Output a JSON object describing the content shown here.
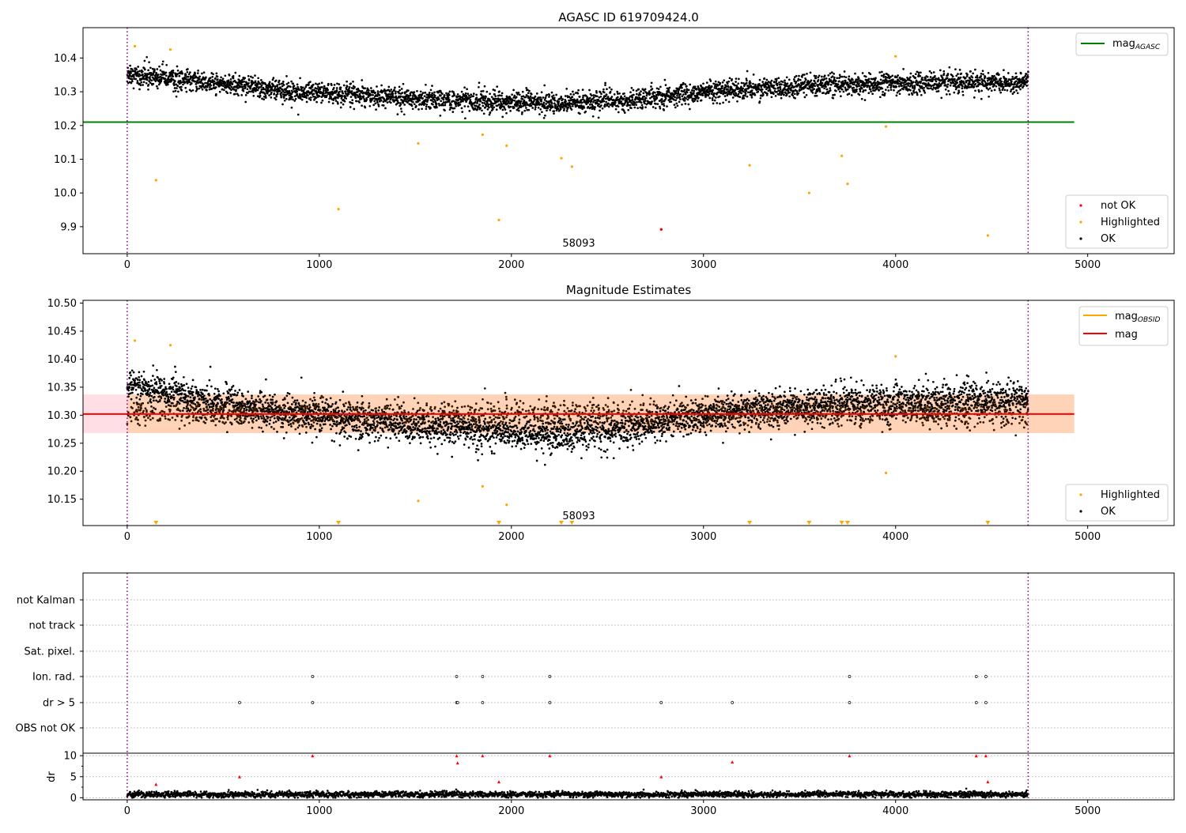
{
  "chart_data": [
    {
      "type": "scatter",
      "title": "AGASC ID 619709424.0",
      "xlim": [
        -230,
        5450
      ],
      "ylim": [
        9.82,
        10.49
      ],
      "xticks": [
        0,
        1000,
        2000,
        3000,
        4000,
        5000
      ],
      "yticks": [
        9.9,
        10.0,
        10.1,
        10.2,
        10.3,
        10.4
      ],
      "ytick_labels": [
        "9.9",
        "10.0",
        "10.1",
        "10.2",
        "10.3",
        "10.4"
      ],
      "legend_upper": {
        "placement": "top-right",
        "entries": [
          {
            "label": "mag",
            "sub": "AGASC",
            "color": "#008000"
          }
        ]
      },
      "legend_lower": {
        "placement": "bottom-right",
        "entries": [
          {
            "label": "not OK",
            "color": "#ff0000"
          },
          {
            "label": "Highlighted",
            "color": "#ffa500"
          },
          {
            "label": "OK",
            "color": "#000000"
          }
        ]
      },
      "hline": {
        "name": "mag_AGASC",
        "y": 10.21,
        "x": [
          -230,
          4930
        ],
        "color": "#008000"
      },
      "vlines": [
        0,
        4690
      ],
      "annotation": {
        "text": "58093",
        "x": 2250,
        "y": 9.84
      },
      "ok_trend": [
        [
          0,
          10.355
        ],
        [
          300,
          10.335
        ],
        [
          800,
          10.305
        ],
        [
          1500,
          10.28
        ],
        [
          2200,
          10.265
        ],
        [
          2600,
          10.275
        ],
        [
          3000,
          10.3
        ],
        [
          3600,
          10.32
        ],
        [
          4690,
          10.33
        ]
      ],
      "ok_n": 4200,
      "ok_spread": 0.02,
      "highlighted": [
        [
          40,
          10.435
        ],
        [
          150,
          10.038
        ],
        [
          225,
          10.425
        ],
        [
          1100,
          9.952
        ],
        [
          1515,
          10.147
        ],
        [
          1850,
          10.173
        ],
        [
          1935,
          9.92
        ],
        [
          1975,
          10.14
        ],
        [
          2260,
          10.103
        ],
        [
          2315,
          10.078
        ],
        [
          3240,
          10.082
        ],
        [
          3550,
          10.0
        ],
        [
          3720,
          10.11
        ],
        [
          3750,
          10.027
        ],
        [
          3950,
          10.197
        ],
        [
          4000,
          10.405
        ],
        [
          4480,
          9.874
        ]
      ],
      "not_ok": [
        [
          2780,
          9.892
        ]
      ]
    },
    {
      "type": "scatter",
      "title": "Magnitude Estimates",
      "xlim": [
        -230,
        5450
      ],
      "ylim": [
        10.103,
        10.505
      ],
      "xticks": [
        0,
        1000,
        2000,
        3000,
        4000,
        5000
      ],
      "yticks": [
        10.15,
        10.2,
        10.25,
        10.3,
        10.35,
        10.4,
        10.45,
        10.5
      ],
      "ytick_labels": [
        "10.15",
        "10.20",
        "10.25",
        "10.30",
        "10.35",
        "10.40",
        "10.45",
        "10.50"
      ],
      "legend_upper": {
        "placement": "top-right",
        "entries": [
          {
            "label": "mag",
            "sub": "OBSID",
            "color": "#ffa500"
          },
          {
            "label": "mag",
            "sub": "",
            "color": "#ff0000"
          }
        ]
      },
      "legend_lower": {
        "placement": "bottom-right",
        "entries": [
          {
            "label": "Highlighted",
            "color": "#ffa500"
          },
          {
            "label": "OK",
            "color": "#000000"
          }
        ]
      },
      "mag_line": {
        "y": 10.302,
        "x": [
          -230,
          4930
        ],
        "color": "#ff0000"
      },
      "mag_band": {
        "y0": 10.268,
        "y1": 10.337,
        "x": [
          -230,
          4930
        ],
        "color": "#ffc0cb"
      },
      "obsid_band": {
        "y0": 10.268,
        "y1": 10.337,
        "x": [
          0,
          4930
        ],
        "color": "#ffa500"
      },
      "vlines": [
        0,
        4690
      ],
      "annotation": {
        "text": "58093",
        "x": 2250,
        "y": 10.115
      },
      "ok_trend": [
        [
          0,
          10.355
        ],
        [
          300,
          10.335
        ],
        [
          800,
          10.305
        ],
        [
          1500,
          10.28
        ],
        [
          2200,
          10.265
        ],
        [
          2600,
          10.275
        ],
        [
          3000,
          10.3
        ],
        [
          3600,
          10.32
        ],
        [
          4690,
          10.33
        ]
      ],
      "ok_n": 4200,
      "ok_spread": 0.02,
      "obsid_points_n": 1400,
      "highlighted": [
        [
          40,
          10.433
        ],
        [
          225,
          10.425
        ],
        [
          1515,
          10.147
        ],
        [
          1850,
          10.173
        ],
        [
          1975,
          10.14
        ],
        [
          3950,
          10.197
        ],
        [
          4000,
          10.405
        ]
      ],
      "below_markers": [
        150,
        1100,
        1935,
        2260,
        2315,
        3240,
        3550,
        3720,
        3750,
        4480
      ]
    },
    {
      "type": "scatter",
      "title": "",
      "xlim": [
        -230,
        5450
      ],
      "xticks": [
        0,
        1000,
        2000,
        3000,
        4000,
        5000
      ],
      "flag_rows": [
        "not Kalman",
        "not track",
        "Sat. pixel.",
        "Ion. rad.",
        "dr > 5",
        "OBS not OK"
      ],
      "flag_points": {
        "Ion. rad.": [
          965,
          1715,
          1850,
          2200,
          3760,
          4420,
          4470
        ],
        "dr > 5": [
          585,
          965,
          1715,
          1720,
          1850,
          2200,
          2780,
          3150,
          3760,
          4420,
          4470
        ]
      },
      "dr_ylabel": "dr",
      "dr_ylim": [
        -0.5,
        10.6
      ],
      "dr_yticks": [
        0,
        5,
        10
      ],
      "dr_minor_yticks": [
        2.5,
        7.5
      ],
      "dr_red_points": [
        [
          150,
          3.2
        ],
        [
          585,
          5.0
        ],
        [
          965,
          10.0
        ],
        [
          1715,
          10.0
        ],
        [
          1720,
          8.3
        ],
        [
          1850,
          10.0
        ],
        [
          1935,
          3.8
        ],
        [
          2200,
          10.0
        ],
        [
          2780,
          5.0
        ],
        [
          3150,
          8.5
        ],
        [
          3760,
          10.0
        ],
        [
          4420,
          10.0
        ],
        [
          4470,
          10.0
        ],
        [
          4480,
          3.8
        ]
      ],
      "dr_ok_mean": 0.8,
      "vlines": [
        0,
        4690
      ]
    }
  ]
}
